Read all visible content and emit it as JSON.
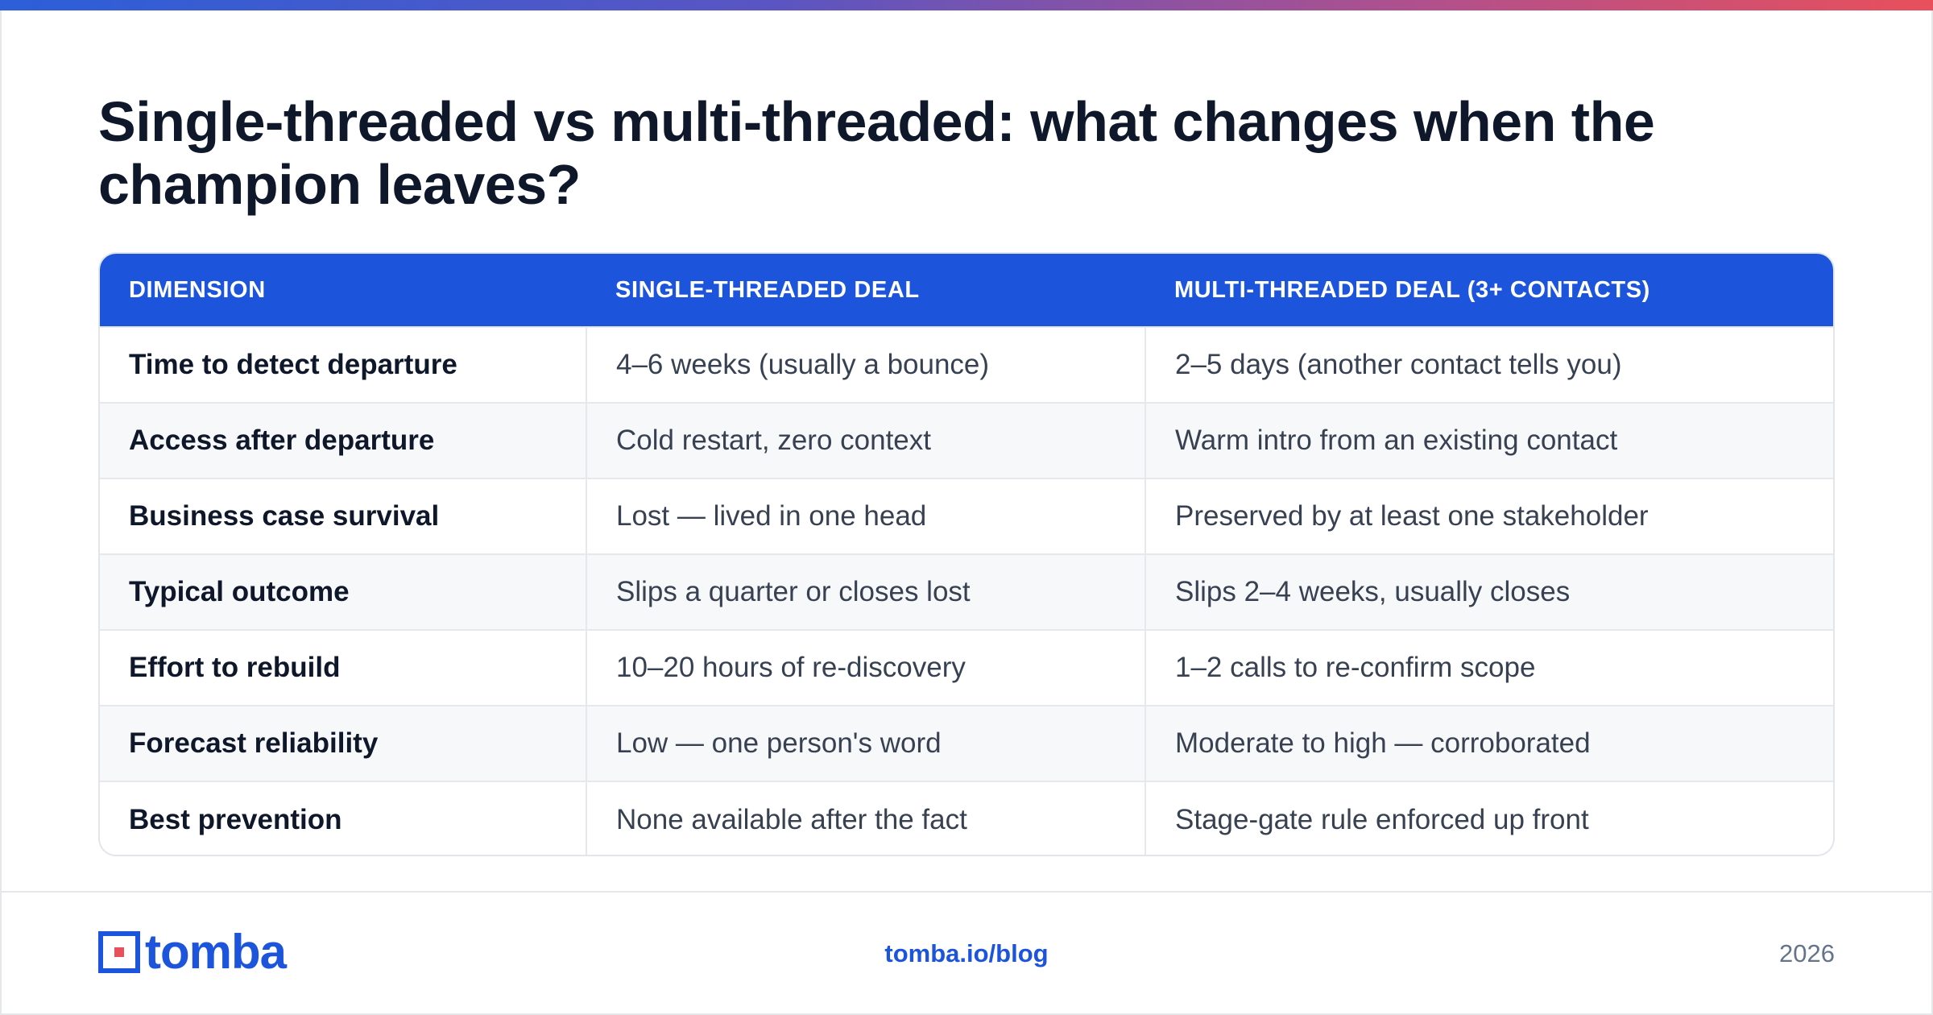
{
  "title": "Single-threaded vs multi-threaded: what changes when the champion leaves?",
  "table": {
    "headers": [
      "DIMENSION",
      "SINGLE-THREADED DEAL",
      "MULTI-THREADED DEAL (3+ CONTACTS)"
    ],
    "rows": [
      [
        "Time to detect departure",
        "4–6 weeks (usually a bounce)",
        "2–5 days (another contact tells you)"
      ],
      [
        "Access after departure",
        "Cold restart, zero context",
        "Warm intro from an existing contact"
      ],
      [
        "Business case survival",
        "Lost — lived in one head",
        "Preserved by at least one stakeholder"
      ],
      [
        "Typical outcome",
        "Slips a quarter or closes lost",
        "Slips 2–4 weeks, usually closes"
      ],
      [
        "Effort to rebuild",
        "10–20 hours of re-discovery",
        "1–2 calls to re-confirm scope"
      ],
      [
        "Forecast reliability",
        "Low — one person's word",
        "Moderate to high — corroborated"
      ],
      [
        "Best prevention",
        "None available after the fact",
        "Stage-gate rule enforced up front"
      ]
    ]
  },
  "footer": {
    "logo_text": "tomba",
    "url": "tomba.io/blog",
    "year": "2026"
  },
  "colors": {
    "accent": "#1c55dc",
    "gradient": [
      "#2c5fd8",
      "#e8505b"
    ]
  }
}
